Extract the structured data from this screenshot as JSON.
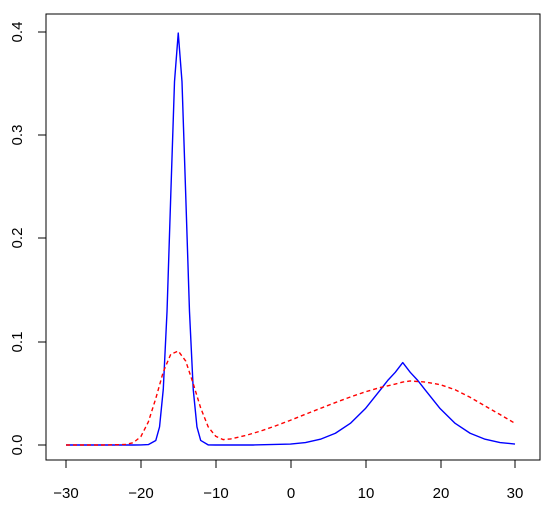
{
  "chart_data": {
    "type": "line",
    "title": "",
    "xlabel": "",
    "ylabel": "",
    "xlim": [
      -30,
      30
    ],
    "ylim": [
      0,
      0.4
    ],
    "grid": false,
    "legend": "none",
    "x_ticks": [
      -30,
      -20,
      -10,
      0,
      10,
      20,
      30
    ],
    "x_tick_labels": [
      "−30",
      "−20",
      "−10",
      "0",
      "10",
      "20",
      "30"
    ],
    "y_ticks": [
      0,
      0.1,
      0.2,
      0.3,
      0.4
    ],
    "y_tick_labels": [
      "0.0",
      "0.1",
      "0.2",
      "0.3",
      "0.4"
    ],
    "series": [
      {
        "color": "#0000ff",
        "line_style": "solid",
        "x": [
          -30,
          -25,
          -21,
          -20,
          -19,
          -18,
          -17.5,
          -17,
          -16.5,
          -16,
          -15.5,
          -15,
          -14.5,
          -14,
          -13.5,
          -13,
          -12.5,
          -12,
          -11,
          -10,
          -5,
          0,
          2,
          4,
          6,
          8,
          10,
          12,
          13,
          14,
          15,
          16,
          17,
          18,
          20,
          22,
          24,
          26,
          28,
          30
        ],
        "y": [
          0,
          0,
          0,
          0.0001,
          0.0004,
          0.0044,
          0.0175,
          0.054,
          0.1295,
          0.242,
          0.352,
          0.399,
          0.352,
          0.242,
          0.1295,
          0.054,
          0.0175,
          0.0044,
          0.0001,
          0,
          0,
          0.0009,
          0.0024,
          0.0056,
          0.0114,
          0.021,
          0.0352,
          0.0533,
          0.0626,
          0.0704,
          0.0798,
          0.0704,
          0.0626,
          0.0533,
          0.0352,
          0.021,
          0.0114,
          0.0056,
          0.0024,
          0.0009
        ]
      },
      {
        "color": "#ff0000",
        "line_style": "dashed",
        "x": [
          -30,
          -25,
          -22,
          -21,
          -20,
          -19,
          -18,
          -17,
          -16,
          -15,
          -14,
          -13,
          -12,
          -11,
          -10,
          -9,
          -8,
          -6,
          -4,
          -2,
          0,
          2,
          4,
          6,
          8,
          10,
          12,
          14,
          15,
          16,
          18,
          20,
          22,
          24,
          26,
          28,
          30
        ],
        "y": [
          0,
          0,
          0.0005,
          0.0023,
          0.0081,
          0.0223,
          0.0451,
          0.0709,
          0.0879,
          0.091,
          0.0813,
          0.0594,
          0.0358,
          0.0176,
          0.0085,
          0.0052,
          0.0059,
          0.0092,
          0.0135,
          0.0185,
          0.024,
          0.0298,
          0.0355,
          0.0411,
          0.0465,
          0.0515,
          0.0557,
          0.059,
          0.061,
          0.062,
          0.061,
          0.0585,
          0.0535,
          0.0462,
          0.0378,
          0.0295,
          0.021
        ]
      }
    ]
  }
}
